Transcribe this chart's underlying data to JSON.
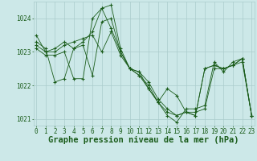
{
  "title": "Graphe pression niveau de la mer (hPa)",
  "bg_color": "#cce8e8",
  "grid_color": "#aacccc",
  "line_color": "#1a5c1a",
  "marker": "+",
  "ylim": [
    1020.8,
    1024.5
  ],
  "yticks": [
    1021,
    1022,
    1023,
    1024
  ],
  "xlim": [
    -0.3,
    23.3
  ],
  "xticks": [
    0,
    1,
    2,
    3,
    4,
    5,
    6,
    7,
    8,
    9,
    10,
    11,
    12,
    13,
    14,
    15,
    16,
    17,
    18,
    19,
    20,
    21,
    22,
    23
  ],
  "series": [
    [
      1023.3,
      1023.1,
      1022.1,
      1022.2,
      1023.1,
      1023.3,
      1023.6,
      1024.3,
      1024.4,
      1023.1,
      1022.5,
      1022.3,
      1021.9,
      1021.5,
      1021.1,
      1020.9,
      1021.3,
      1021.3,
      1021.4,
      1022.7,
      1022.4,
      1022.7,
      1022.8,
      1021.1
    ],
    [
      1023.1,
      1022.9,
      1022.9,
      1023.0,
      1022.2,
      1022.2,
      1024.0,
      1024.3,
      1023.7,
      1023.0,
      1022.5,
      1022.4,
      1022.1,
      1021.6,
      1021.3,
      1021.1,
      1021.2,
      1021.1,
      1022.5,
      1022.6,
      1022.5,
      1022.6,
      1022.8,
      1021.1
    ],
    [
      1023.5,
      1023.0,
      1023.1,
      1023.3,
      1023.1,
      1023.2,
      1022.3,
      1023.9,
      1024.0,
      1023.0,
      1022.5,
      1022.4,
      1021.9,
      1021.5,
      1021.9,
      1021.7,
      1021.2,
      1021.2,
      1021.3,
      1022.5,
      1022.5,
      1022.6,
      1022.7,
      1021.1
    ],
    [
      1023.2,
      1023.0,
      1023.0,
      1023.2,
      1023.3,
      1023.4,
      1023.5,
      1023.0,
      1023.6,
      1022.9,
      1022.5,
      1022.3,
      1022.0,
      1021.5,
      1021.2,
      1021.1,
      1021.2,
      1021.1,
      1022.5,
      1022.6,
      1022.5,
      1022.6,
      1022.8,
      1021.1
    ]
  ],
  "figwidth": 3.2,
  "figheight": 2.0,
  "dpi": 100,
  "title_fontsize": 7.5,
  "tick_fontsize": 5.5
}
